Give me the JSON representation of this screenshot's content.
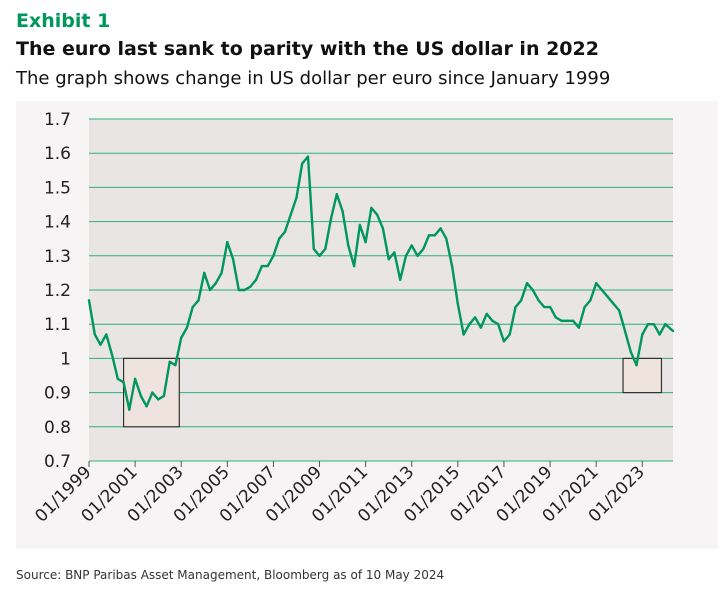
{
  "header": {
    "exhibit_label": "Exhibit 1",
    "title": "The euro last sank to parity with the US dollar in 2022",
    "subtitle": "The graph shows change in US dollar per euro since January 1999"
  },
  "footer": {
    "source": "Source: BNP Paribas Asset Management, Bloomberg as of 10 May 2024"
  },
  "colors": {
    "line": "#00965e",
    "highlight_line": "#3aa878",
    "grid": "#2daf7a",
    "plot_background": "#e9e5e4",
    "frame_background": "#f6f4f4",
    "box_stroke": "#333333",
    "box_fill": "#efe3de"
  },
  "chart_data": {
    "type": "line",
    "title": "The euro last sank to parity with the US dollar in 2022",
    "subtitle": "The graph shows change in US dollar per euro since January 1999",
    "xlabel": "",
    "ylabel": "",
    "ylim": [
      0.7,
      1.7
    ],
    "yticks": [
      0.7,
      0.8,
      0.9,
      1,
      1.1,
      1.2,
      1.3,
      1.4,
      1.5,
      1.6,
      1.7
    ],
    "ytick_labels": [
      "0.7",
      "0.8",
      "0.9",
      "1",
      "1.1",
      "1.2",
      "1.3",
      "1.4",
      "1.5",
      "1.6",
      "1.7"
    ],
    "xlim": [
      "1999-01",
      "2024-05"
    ],
    "xticks": [
      "01/1999",
      "01/2001",
      "01/2003",
      "01/2005",
      "01/2007",
      "01/2009",
      "01/2011",
      "01/2013",
      "01/2015",
      "01/2017",
      "01/2019",
      "01/2021",
      "01/2023"
    ],
    "grid": "horizontal",
    "series": [
      {
        "x": [
          "1999-01",
          "1999-04",
          "1999-07",
          "1999-10",
          "2000-01",
          "2000-04",
          "2000-07",
          "2000-10",
          "2001-01",
          "2001-04",
          "2001-07",
          "2001-10",
          "2002-01",
          "2002-04",
          "2002-07",
          "2002-10",
          "2003-01",
          "2003-04",
          "2003-07",
          "2003-10",
          "2004-01",
          "2004-04",
          "2004-07",
          "2004-10",
          "2005-01",
          "2005-04",
          "2005-07",
          "2005-10",
          "2006-01",
          "2006-04",
          "2006-07",
          "2006-10",
          "2007-01",
          "2007-04",
          "2007-07",
          "2007-10",
          "2008-01",
          "2008-04",
          "2008-07",
          "2008-10",
          "2009-01",
          "2009-04",
          "2009-07",
          "2009-10",
          "2010-01",
          "2010-04",
          "2010-07",
          "2010-10",
          "2011-01",
          "2011-04",
          "2011-07",
          "2011-10",
          "2012-01",
          "2012-04",
          "2012-07",
          "2012-10",
          "2013-01",
          "2013-04",
          "2013-07",
          "2013-10",
          "2014-01",
          "2014-04",
          "2014-07",
          "2014-10",
          "2015-01",
          "2015-04",
          "2015-07",
          "2015-10",
          "2016-01",
          "2016-04",
          "2016-07",
          "2016-10",
          "2017-01",
          "2017-04",
          "2017-07",
          "2017-10",
          "2018-01",
          "2018-04",
          "2018-07",
          "2018-10",
          "2019-01",
          "2019-04",
          "2019-07",
          "2019-10",
          "2020-01",
          "2020-04",
          "2020-07",
          "2020-10",
          "2021-01",
          "2021-04",
          "2021-07",
          "2021-10",
          "2022-01",
          "2022-04",
          "2022-07",
          "2022-10",
          "2023-01",
          "2023-04",
          "2023-07",
          "2023-10",
          "2024-01",
          "2024-05"
        ],
        "values": [
          1.17,
          1.07,
          1.04,
          1.07,
          1.01,
          0.94,
          0.93,
          0.85,
          0.94,
          0.89,
          0.86,
          0.9,
          0.88,
          0.89,
          0.99,
          0.98,
          1.06,
          1.09,
          1.15,
          1.17,
          1.25,
          1.2,
          1.22,
          1.25,
          1.34,
          1.29,
          1.2,
          1.2,
          1.21,
          1.23,
          1.27,
          1.27,
          1.3,
          1.35,
          1.37,
          1.42,
          1.47,
          1.57,
          1.59,
          1.32,
          1.3,
          1.32,
          1.41,
          1.48,
          1.43,
          1.33,
          1.27,
          1.39,
          1.34,
          1.44,
          1.42,
          1.38,
          1.29,
          1.31,
          1.23,
          1.3,
          1.33,
          1.3,
          1.32,
          1.36,
          1.36,
          1.38,
          1.35,
          1.27,
          1.16,
          1.07,
          1.1,
          1.12,
          1.09,
          1.13,
          1.11,
          1.1,
          1.05,
          1.07,
          1.15,
          1.17,
          1.22,
          1.2,
          1.17,
          1.15,
          1.15,
          1.12,
          1.11,
          1.11,
          1.11,
          1.09,
          1.15,
          1.17,
          1.22,
          1.2,
          1.18,
          1.16,
          1.14,
          1.08,
          1.02,
          0.98,
          1.07,
          1.1,
          1.1,
          1.07,
          1.1,
          1.08
        ]
      }
    ],
    "annotations": [
      {
        "type": "box",
        "x": [
          "2000-07",
          "2002-12"
        ],
        "y": [
          0.8,
          1.0
        ]
      },
      {
        "type": "box",
        "x": [
          "2022-03",
          "2023-11"
        ],
        "y": [
          0.9,
          1.0
        ]
      }
    ]
  }
}
